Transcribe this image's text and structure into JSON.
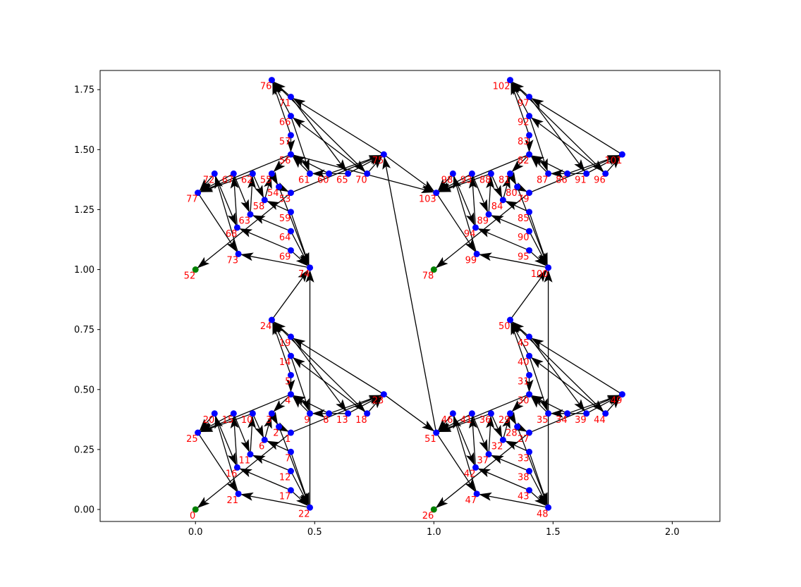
{
  "colors": {
    "node": "#0000ff",
    "source_node": "#008000",
    "label": "#ff0000",
    "edge": "#000000",
    "background": "#ffffff",
    "frame": "#000000"
  },
  "chart_data": {
    "type": "scatter",
    "title": "",
    "xlabel": "",
    "ylabel": "",
    "xlim": [
      -0.4,
      2.2
    ],
    "ylim": [
      -0.05,
      1.83
    ],
    "xticks": [
      "0.0",
      "0.5",
      "1.0",
      "1.5",
      "2.0"
    ],
    "xtick_values": [
      0.0,
      0.5,
      1.0,
      1.5,
      2.0
    ],
    "yticks": [
      "0.00",
      "0.25",
      "0.50",
      "0.75",
      "1.00",
      "1.25",
      "1.50",
      "1.75"
    ],
    "ytick_values": [
      0.0,
      0.25,
      0.5,
      0.75,
      1.0,
      1.25,
      1.5,
      1.75
    ],
    "grid": false,
    "nodes": [
      {
        "id": "0",
        "x": 0.0,
        "y": 0.0,
        "source": true
      },
      {
        "id": "1",
        "x": 0.4,
        "y": 0.32
      },
      {
        "id": "2",
        "x": 0.35,
        "y": 0.345
      },
      {
        "id": "3",
        "x": 0.32,
        "y": 0.4
      },
      {
        "id": "4",
        "x": 0.4,
        "y": 0.48
      },
      {
        "id": "5",
        "x": 0.4,
        "y": 0.56
      },
      {
        "id": "6",
        "x": 0.29,
        "y": 0.29
      },
      {
        "id": "7",
        "x": 0.4,
        "y": 0.24
      },
      {
        "id": "8",
        "x": 0.56,
        "y": 0.4
      },
      {
        "id": "9",
        "x": 0.48,
        "y": 0.4
      },
      {
        "id": "10",
        "x": 0.24,
        "y": 0.4
      },
      {
        "id": "11",
        "x": 0.23,
        "y": 0.23
      },
      {
        "id": "12",
        "x": 0.4,
        "y": 0.16
      },
      {
        "id": "13",
        "x": 0.64,
        "y": 0.4
      },
      {
        "id": "14",
        "x": 0.4,
        "y": 0.64
      },
      {
        "id": "15",
        "x": 0.16,
        "y": 0.4
      },
      {
        "id": "16",
        "x": 0.175,
        "y": 0.175
      },
      {
        "id": "17",
        "x": 0.4,
        "y": 0.08
      },
      {
        "id": "18",
        "x": 0.72,
        "y": 0.4
      },
      {
        "id": "19",
        "x": 0.4,
        "y": 0.72
      },
      {
        "id": "20",
        "x": 0.08,
        "y": 0.4
      },
      {
        "id": "21",
        "x": 0.18,
        "y": 0.065
      },
      {
        "id": "22",
        "x": 0.48,
        "y": 0.008
      },
      {
        "id": "23",
        "x": 0.79,
        "y": 0.48
      },
      {
        "id": "24",
        "x": 0.32,
        "y": 0.79
      },
      {
        "id": "25",
        "x": 0.01,
        "y": 0.32
      },
      {
        "id": "26",
        "x": 1.0,
        "y": 0.0,
        "source": true
      },
      {
        "id": "27",
        "x": 1.4,
        "y": 0.32
      },
      {
        "id": "28",
        "x": 1.35,
        "y": 0.345
      },
      {
        "id": "29",
        "x": 1.32,
        "y": 0.4
      },
      {
        "id": "30",
        "x": 1.4,
        "y": 0.48
      },
      {
        "id": "31",
        "x": 1.4,
        "y": 0.56
      },
      {
        "id": "32",
        "x": 1.29,
        "y": 0.29
      },
      {
        "id": "33",
        "x": 1.4,
        "y": 0.24
      },
      {
        "id": "34",
        "x": 1.56,
        "y": 0.4
      },
      {
        "id": "35",
        "x": 1.48,
        "y": 0.4
      },
      {
        "id": "36",
        "x": 1.24,
        "y": 0.4
      },
      {
        "id": "37",
        "x": 1.23,
        "y": 0.23
      },
      {
        "id": "38",
        "x": 1.4,
        "y": 0.16
      },
      {
        "id": "39",
        "x": 1.64,
        "y": 0.4
      },
      {
        "id": "40",
        "x": 1.4,
        "y": 0.64
      },
      {
        "id": "41",
        "x": 1.16,
        "y": 0.4
      },
      {
        "id": "42",
        "x": 1.175,
        "y": 0.175
      },
      {
        "id": "43",
        "x": 1.4,
        "y": 0.08
      },
      {
        "id": "44",
        "x": 1.72,
        "y": 0.4
      },
      {
        "id": "45",
        "x": 1.4,
        "y": 0.72
      },
      {
        "id": "46",
        "x": 1.08,
        "y": 0.4
      },
      {
        "id": "47",
        "x": 1.18,
        "y": 0.065
      },
      {
        "id": "48",
        "x": 1.48,
        "y": 0.008
      },
      {
        "id": "49",
        "x": 1.79,
        "y": 0.48
      },
      {
        "id": "50",
        "x": 1.32,
        "y": 0.79
      },
      {
        "id": "51",
        "x": 1.01,
        "y": 0.32
      },
      {
        "id": "52",
        "x": 0.0,
        "y": 1.0,
        "source": true
      },
      {
        "id": "53",
        "x": 0.4,
        "y": 1.32
      },
      {
        "id": "54",
        "x": 0.35,
        "y": 1.345
      },
      {
        "id": "55",
        "x": 0.32,
        "y": 1.4
      },
      {
        "id": "56",
        "x": 0.4,
        "y": 1.48
      },
      {
        "id": "57",
        "x": 0.4,
        "y": 1.56
      },
      {
        "id": "58",
        "x": 0.29,
        "y": 1.29
      },
      {
        "id": "59",
        "x": 0.4,
        "y": 1.24
      },
      {
        "id": "60",
        "x": 0.56,
        "y": 1.4
      },
      {
        "id": "61",
        "x": 0.48,
        "y": 1.4
      },
      {
        "id": "62",
        "x": 0.24,
        "y": 1.4
      },
      {
        "id": "63",
        "x": 0.23,
        "y": 1.23
      },
      {
        "id": "64",
        "x": 0.4,
        "y": 1.16
      },
      {
        "id": "65",
        "x": 0.64,
        "y": 1.4
      },
      {
        "id": "66",
        "x": 0.4,
        "y": 1.64
      },
      {
        "id": "67",
        "x": 0.16,
        "y": 1.4
      },
      {
        "id": "68",
        "x": 0.175,
        "y": 1.175
      },
      {
        "id": "69",
        "x": 0.4,
        "y": 1.08
      },
      {
        "id": "70",
        "x": 0.72,
        "y": 1.4
      },
      {
        "id": "71",
        "x": 0.4,
        "y": 1.72
      },
      {
        "id": "72",
        "x": 0.08,
        "y": 1.4
      },
      {
        "id": "73",
        "x": 0.18,
        "y": 1.065
      },
      {
        "id": "74",
        "x": 0.48,
        "y": 1.008
      },
      {
        "id": "75",
        "x": 0.79,
        "y": 1.48
      },
      {
        "id": "76",
        "x": 0.32,
        "y": 1.79
      },
      {
        "id": "77",
        "x": 0.01,
        "y": 1.32
      },
      {
        "id": "78",
        "x": 1.0,
        "y": 1.0,
        "source": true
      },
      {
        "id": "79",
        "x": 1.4,
        "y": 1.32
      },
      {
        "id": "80",
        "x": 1.35,
        "y": 1.345
      },
      {
        "id": "81",
        "x": 1.32,
        "y": 1.4
      },
      {
        "id": "82",
        "x": 1.4,
        "y": 1.48
      },
      {
        "id": "83",
        "x": 1.4,
        "y": 1.56
      },
      {
        "id": "84",
        "x": 1.29,
        "y": 1.29
      },
      {
        "id": "85",
        "x": 1.4,
        "y": 1.24
      },
      {
        "id": "86",
        "x": 1.56,
        "y": 1.4
      },
      {
        "id": "87",
        "x": 1.48,
        "y": 1.4
      },
      {
        "id": "88",
        "x": 1.24,
        "y": 1.4
      },
      {
        "id": "89",
        "x": 1.23,
        "y": 1.23
      },
      {
        "id": "90",
        "x": 1.4,
        "y": 1.16
      },
      {
        "id": "91",
        "x": 1.64,
        "y": 1.4
      },
      {
        "id": "92",
        "x": 1.4,
        "y": 1.64
      },
      {
        "id": "93",
        "x": 1.16,
        "y": 1.4
      },
      {
        "id": "94",
        "x": 1.175,
        "y": 1.175
      },
      {
        "id": "95",
        "x": 1.4,
        "y": 1.08
      },
      {
        "id": "96",
        "x": 1.72,
        "y": 1.4
      },
      {
        "id": "97",
        "x": 1.4,
        "y": 1.72
      },
      {
        "id": "98",
        "x": 1.08,
        "y": 1.4
      },
      {
        "id": "99",
        "x": 1.18,
        "y": 1.065
      },
      {
        "id": "100",
        "x": 1.48,
        "y": 1.008
      },
      {
        "id": "101",
        "x": 1.79,
        "y": 1.48
      },
      {
        "id": "102",
        "x": 1.32,
        "y": 1.79
      },
      {
        "id": "103",
        "x": 1.01,
        "y": 1.32
      }
    ],
    "edges": [
      [
        "1",
        "0"
      ],
      [
        "2",
        "1"
      ],
      [
        "3",
        "2"
      ],
      [
        "4",
        "3"
      ],
      [
        "5",
        "4"
      ],
      [
        "6",
        "3"
      ],
      [
        "7",
        "6"
      ],
      [
        "8",
        "4"
      ],
      [
        "9",
        "4"
      ],
      [
        "10",
        "6"
      ],
      [
        "11",
        "10"
      ],
      [
        "12",
        "11"
      ],
      [
        "13",
        "9"
      ],
      [
        "14",
        "9"
      ],
      [
        "15",
        "11"
      ],
      [
        "16",
        "15"
      ],
      [
        "17",
        "16"
      ],
      [
        "18",
        "14"
      ],
      [
        "19",
        "13"
      ],
      [
        "20",
        "16"
      ],
      [
        "21",
        "20"
      ],
      [
        "22",
        "21"
      ],
      [
        "23",
        "19"
      ],
      [
        "24",
        "18"
      ],
      [
        "25",
        "21"
      ],
      [
        "4",
        "25"
      ],
      [
        "5",
        "24"
      ],
      [
        "10",
        "25"
      ],
      [
        "14",
        "24"
      ],
      [
        "15",
        "25"
      ],
      [
        "19",
        "24"
      ],
      [
        "20",
        "25"
      ],
      [
        "2",
        "22"
      ],
      [
        "7",
        "22"
      ],
      [
        "12",
        "22"
      ],
      [
        "17",
        "22"
      ],
      [
        "1",
        "23"
      ],
      [
        "8",
        "23"
      ],
      [
        "13",
        "23"
      ],
      [
        "18",
        "23"
      ],
      [
        "24",
        "74"
      ],
      [
        "22",
        "74"
      ],
      [
        "23",
        "51"
      ],
      [
        "51",
        "75"
      ],
      [
        "27",
        "26"
      ],
      [
        "28",
        "27"
      ],
      [
        "29",
        "28"
      ],
      [
        "30",
        "29"
      ],
      [
        "31",
        "30"
      ],
      [
        "32",
        "29"
      ],
      [
        "33",
        "32"
      ],
      [
        "34",
        "30"
      ],
      [
        "35",
        "30"
      ],
      [
        "36",
        "32"
      ],
      [
        "37",
        "36"
      ],
      [
        "38",
        "37"
      ],
      [
        "39",
        "35"
      ],
      [
        "40",
        "35"
      ],
      [
        "41",
        "37"
      ],
      [
        "42",
        "41"
      ],
      [
        "43",
        "42"
      ],
      [
        "44",
        "40"
      ],
      [
        "45",
        "39"
      ],
      [
        "46",
        "42"
      ],
      [
        "47",
        "46"
      ],
      [
        "48",
        "47"
      ],
      [
        "49",
        "45"
      ],
      [
        "50",
        "44"
      ],
      [
        "51",
        "47"
      ],
      [
        "30",
        "51"
      ],
      [
        "31",
        "50"
      ],
      [
        "36",
        "51"
      ],
      [
        "40",
        "50"
      ],
      [
        "41",
        "51"
      ],
      [
        "45",
        "50"
      ],
      [
        "46",
        "51"
      ],
      [
        "28",
        "48"
      ],
      [
        "33",
        "48"
      ],
      [
        "38",
        "48"
      ],
      [
        "43",
        "48"
      ],
      [
        "27",
        "49"
      ],
      [
        "34",
        "49"
      ],
      [
        "39",
        "49"
      ],
      [
        "44",
        "49"
      ],
      [
        "50",
        "100"
      ],
      [
        "48",
        "100"
      ],
      [
        "53",
        "52"
      ],
      [
        "54",
        "53"
      ],
      [
        "55",
        "54"
      ],
      [
        "56",
        "55"
      ],
      [
        "57",
        "56"
      ],
      [
        "58",
        "55"
      ],
      [
        "59",
        "58"
      ],
      [
        "60",
        "56"
      ],
      [
        "61",
        "56"
      ],
      [
        "62",
        "58"
      ],
      [
        "63",
        "62"
      ],
      [
        "64",
        "63"
      ],
      [
        "65",
        "61"
      ],
      [
        "66",
        "61"
      ],
      [
        "67",
        "63"
      ],
      [
        "68",
        "67"
      ],
      [
        "69",
        "68"
      ],
      [
        "70",
        "66"
      ],
      [
        "71",
        "65"
      ],
      [
        "72",
        "68"
      ],
      [
        "73",
        "72"
      ],
      [
        "74",
        "73"
      ],
      [
        "75",
        "71"
      ],
      [
        "76",
        "70"
      ],
      [
        "77",
        "73"
      ],
      [
        "56",
        "77"
      ],
      [
        "57",
        "76"
      ],
      [
        "62",
        "77"
      ],
      [
        "66",
        "76"
      ],
      [
        "67",
        "77"
      ],
      [
        "71",
        "76"
      ],
      [
        "72",
        "77"
      ],
      [
        "54",
        "74"
      ],
      [
        "59",
        "74"
      ],
      [
        "64",
        "74"
      ],
      [
        "69",
        "74"
      ],
      [
        "53",
        "75"
      ],
      [
        "60",
        "75"
      ],
      [
        "65",
        "75"
      ],
      [
        "70",
        "75"
      ],
      [
        "75",
        "103"
      ],
      [
        "56",
        "103"
      ],
      [
        "79",
        "78"
      ],
      [
        "80",
        "79"
      ],
      [
        "81",
        "80"
      ],
      [
        "82",
        "81"
      ],
      [
        "83",
        "82"
      ],
      [
        "84",
        "81"
      ],
      [
        "85",
        "84"
      ],
      [
        "86",
        "82"
      ],
      [
        "87",
        "82"
      ],
      [
        "88",
        "84"
      ],
      [
        "89",
        "88"
      ],
      [
        "90",
        "89"
      ],
      [
        "91",
        "87"
      ],
      [
        "92",
        "87"
      ],
      [
        "93",
        "89"
      ],
      [
        "94",
        "93"
      ],
      [
        "95",
        "94"
      ],
      [
        "96",
        "92"
      ],
      [
        "97",
        "91"
      ],
      [
        "98",
        "94"
      ],
      [
        "99",
        "98"
      ],
      [
        "100",
        "99"
      ],
      [
        "101",
        "97"
      ],
      [
        "102",
        "96"
      ],
      [
        "103",
        "99"
      ],
      [
        "82",
        "103"
      ],
      [
        "83",
        "102"
      ],
      [
        "88",
        "103"
      ],
      [
        "92",
        "102"
      ],
      [
        "93",
        "103"
      ],
      [
        "97",
        "102"
      ],
      [
        "98",
        "103"
      ],
      [
        "80",
        "100"
      ],
      [
        "85",
        "100"
      ],
      [
        "90",
        "100"
      ],
      [
        "95",
        "100"
      ],
      [
        "79",
        "101"
      ],
      [
        "86",
        "101"
      ],
      [
        "91",
        "101"
      ],
      [
        "96",
        "101"
      ]
    ]
  }
}
